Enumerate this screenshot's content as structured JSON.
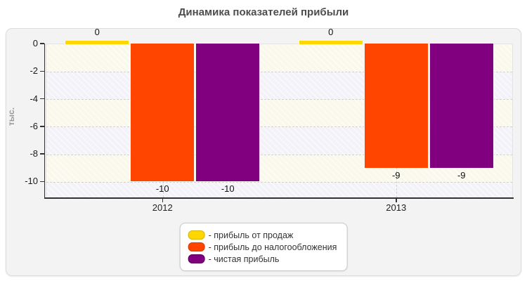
{
  "chart_data": {
    "type": "bar",
    "title": "Динамика показателей прибыли",
    "ylabel": "тыс.",
    "xlabel": "",
    "categories": [
      "2012",
      "2013"
    ],
    "series": [
      {
        "name": "прибыль от продаж",
        "color": "#ffd700",
        "border_color": "#d9b400",
        "values": [
          0,
          0
        ]
      },
      {
        "name": "прибыль до налогообложения",
        "color": "#ff4500",
        "border_color": "#d93a00",
        "values": [
          -10,
          -9
        ]
      },
      {
        "name": "чистая прибыль",
        "color": "#800080",
        "border_color": "#5c005c",
        "values": [
          -10,
          -9
        ]
      }
    ],
    "value_labels": [
      [
        "0",
        "-10",
        "-10"
      ],
      [
        "0",
        "-9",
        "-9"
      ]
    ],
    "y_ticks": [
      0,
      -2,
      -4,
      -6,
      -8,
      -10
    ],
    "ylim": [
      -11.2,
      0
    ],
    "grid": "dashed",
    "legend_position": "bottom",
    "legend_item_prefix": "- "
  }
}
